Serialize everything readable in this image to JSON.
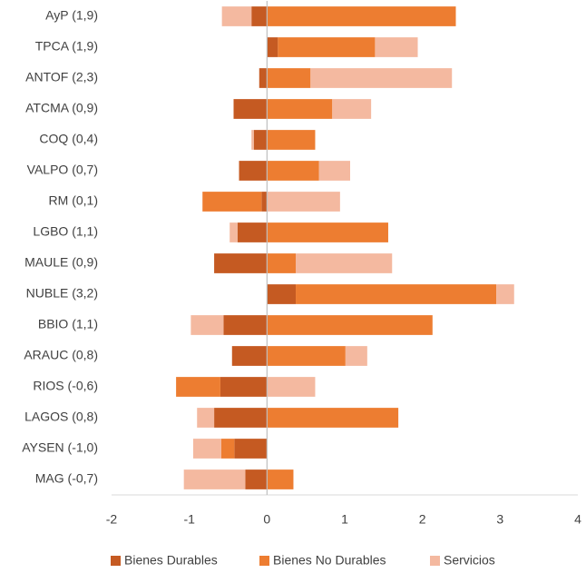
{
  "chart_data": {
    "type": "bar",
    "orientation": "horizontal",
    "stacked": "diverging",
    "categories": [
      "AyP (1,9)",
      "TPCA (1,9)",
      "ANTOF (2,3)",
      "ATCMA (0,9)",
      "COQ (0,4)",
      "VALPO (0,7)",
      "RM (0,1)",
      "LGBO (1,1)",
      "MAULE (0,9)",
      "NUBLE (3,2)",
      "BBIO (1,1)",
      "ARAUC (0,8)",
      "RIOS (-0,6)",
      "LAGOS (0,8)",
      "AYSEN (-1,0)",
      "MAG (-0,7)"
    ],
    "series": [
      {
        "name": "Bienes Durables",
        "color": "#c55a22",
        "values": [
          -0.2,
          0.14,
          -0.1,
          -0.43,
          -0.17,
          -0.36,
          -0.07,
          -0.38,
          -0.68,
          0.37,
          -0.56,
          -0.45,
          -0.6,
          -0.68,
          -0.42,
          -0.28
        ]
      },
      {
        "name": "Bienes No Durables",
        "color": "#ed7d31",
        "values": [
          2.43,
          1.25,
          0.56,
          0.84,
          0.62,
          0.67,
          -0.76,
          1.56,
          0.37,
          2.58,
          2.13,
          1.01,
          -0.57,
          1.69,
          -0.17,
          0.34
        ]
      },
      {
        "name": "Servicios",
        "color": "#f4b9a0",
        "values": [
          -0.38,
          0.55,
          1.82,
          0.5,
          -0.03,
          0.4,
          0.94,
          -0.1,
          1.24,
          0.23,
          -0.42,
          0.28,
          0.62,
          -0.22,
          -0.36,
          -0.79
        ]
      }
    ],
    "xlim": [
      -2,
      4
    ],
    "xticks": [
      -2,
      -1,
      0,
      1,
      2,
      3,
      4
    ],
    "legend": "bottom"
  }
}
